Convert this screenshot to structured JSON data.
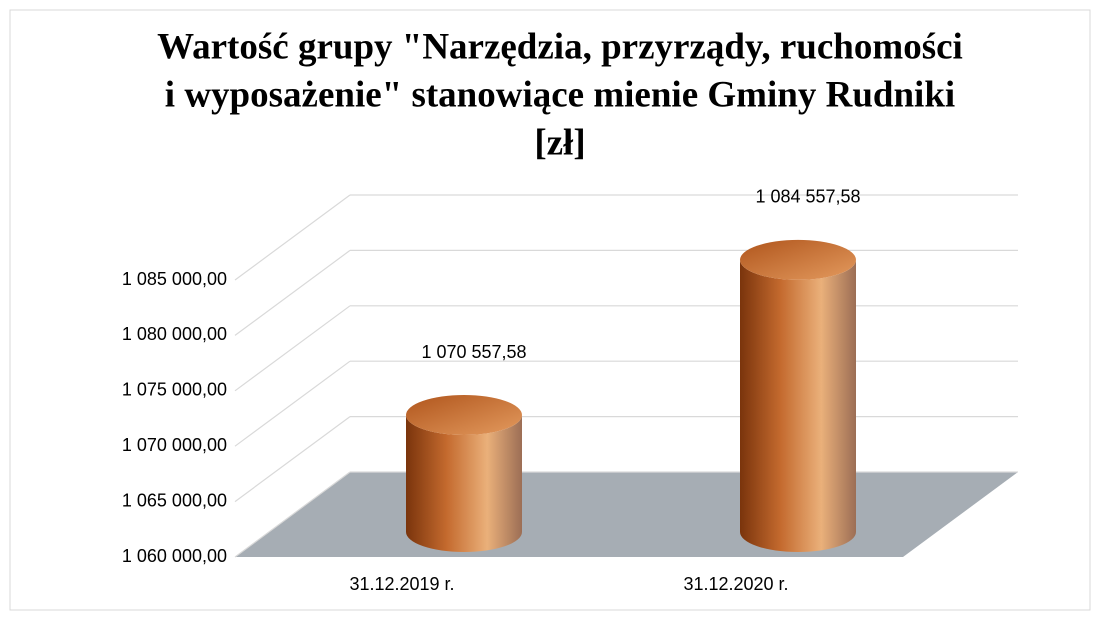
{
  "chart_data": {
    "type": "bar3d-cylinder",
    "title": [
      "Wartość grupy \"Narzędzia, przyrządy, ruchomości",
      "i wyposażenie\" stanowiące mienie Gminy Rudniki",
      "[zł]"
    ],
    "categories": [
      "31.12.2019 r.",
      "31.12.2020 r."
    ],
    "values": [
      1070557.58,
      1084557.58
    ],
    "value_labels": [
      "1 070 557,58",
      "1 084 557,58"
    ],
    "ylim": [
      1060000,
      1085000
    ],
    "yticks": [
      {
        "value": 1060000,
        "label": "1 060 000,00"
      },
      {
        "value": 1065000,
        "label": "1 065 000,00"
      },
      {
        "value": 1070000,
        "label": "1 070 000,00"
      },
      {
        "value": 1075000,
        "label": "1 075 000,00"
      },
      {
        "value": 1080000,
        "label": "1 080 000,00"
      },
      {
        "value": 1085000,
        "label": "1 085 000,00"
      }
    ],
    "grid": true,
    "color": "#c8743a"
  }
}
